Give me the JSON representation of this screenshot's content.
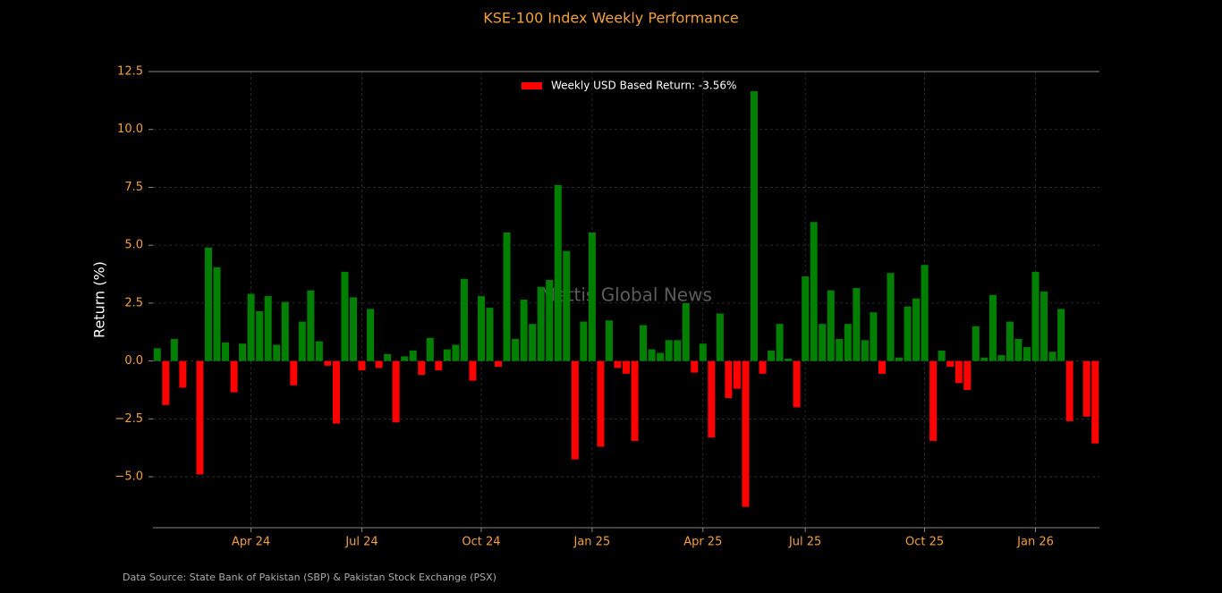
{
  "chart_data": {
    "type": "bar",
    "title": "KSE-100 Index Weekly Performance",
    "ylabel": "Return (%)",
    "watermark": "Mettis Global News",
    "source": "Data Source: State Bank of Pakistan (SBP) & Pakistan Stock Exchange (PSX)",
    "legend": "upper center",
    "grid": true,
    "ylim": [
      -7.2,
      12.5
    ],
    "yticks": [
      {
        "value": -5,
        "label": "−5.0"
      },
      {
        "value": -2.5,
        "label": "−2.5"
      },
      {
        "value": 0,
        "label": "0.0"
      },
      2.5,
      {
        "value": 5,
        "label": "5.0"
      },
      7.5,
      {
        "value": 10,
        "label": "10.0"
      },
      12.5
    ],
    "categories": [
      null,
      null,
      null,
      null,
      null,
      null,
      null,
      null,
      null,
      null,
      null,
      "Apr 24",
      null,
      null,
      null,
      null,
      null,
      null,
      null,
      null,
      null,
      null,
      null,
      null,
      "Jul 24",
      null,
      null,
      null,
      null,
      null,
      null,
      null,
      null,
      null,
      null,
      null,
      null,
      null,
      "Oct 24",
      null,
      null,
      null,
      null,
      null,
      null,
      null,
      null,
      null,
      null,
      null,
      null,
      "Jan 25",
      null,
      null,
      null,
      null,
      null,
      null,
      null,
      null,
      null,
      null,
      null,
      null,
      "Apr 25",
      null,
      null,
      null,
      null,
      null,
      null,
      null,
      null,
      null,
      null,
      null,
      "Jul 25",
      null,
      null,
      null,
      null,
      null,
      null,
      null,
      null,
      null,
      null,
      null,
      null,
      null,
      "Oct 25",
      null,
      null,
      null,
      null,
      null,
      null,
      null,
      null,
      null,
      null,
      null,
      null,
      "Jan 26",
      null,
      null,
      null,
      null,
      null,
      null,
      null
    ],
    "series": [
      {
        "name": "Weekly USD Based Return: -3.56%",
        "color": "#ff0000",
        "positive_color": "#008000",
        "values": [
          0.55,
          -1.9,
          0.95,
          -1.15,
          0,
          -4.9,
          4.9,
          4.05,
          0.8,
          -1.35,
          0.75,
          2.9,
          2.15,
          2.8,
          0.7,
          2.55,
          -1.05,
          1.7,
          3.05,
          0.85,
          -0.2,
          -2.7,
          3.85,
          2.75,
          -0.4,
          2.25,
          -0.3,
          0.3,
          -2.65,
          0.2,
          0.45,
          -0.6,
          1.0,
          -0.4,
          0.5,
          0.7,
          3.55,
          -0.85,
          2.8,
          2.3,
          -0.25,
          5.55,
          0.95,
          2.65,
          1.6,
          3.2,
          3.5,
          7.6,
          4.75,
          -4.25,
          1.7,
          5.55,
          -3.7,
          1.75,
          -0.3,
          -0.55,
          -3.45,
          1.55,
          0.5,
          0.35,
          0.9,
          0.9,
          2.5,
          -0.5,
          0.75,
          -3.3,
          2.05,
          -1.6,
          -1.2,
          -6.3,
          11.65,
          -0.55,
          0.45,
          1.6,
          0.1,
          -2.0,
          3.65,
          6.0,
          1.6,
          3.05,
          0.95,
          1.6,
          3.15,
          0.9,
          2.1,
          -0.55,
          3.8,
          0.15,
          2.35,
          2.7,
          4.15,
          -3.45,
          0.45,
          -0.25,
          -0.95,
          -1.25,
          1.5,
          0.15,
          2.85,
          0.25,
          1.7,
          0.95,
          0.6,
          3.85,
          3.0,
          0.4,
          2.25,
          -2.6,
          0,
          -2.4,
          -3.56
        ]
      }
    ]
  }
}
